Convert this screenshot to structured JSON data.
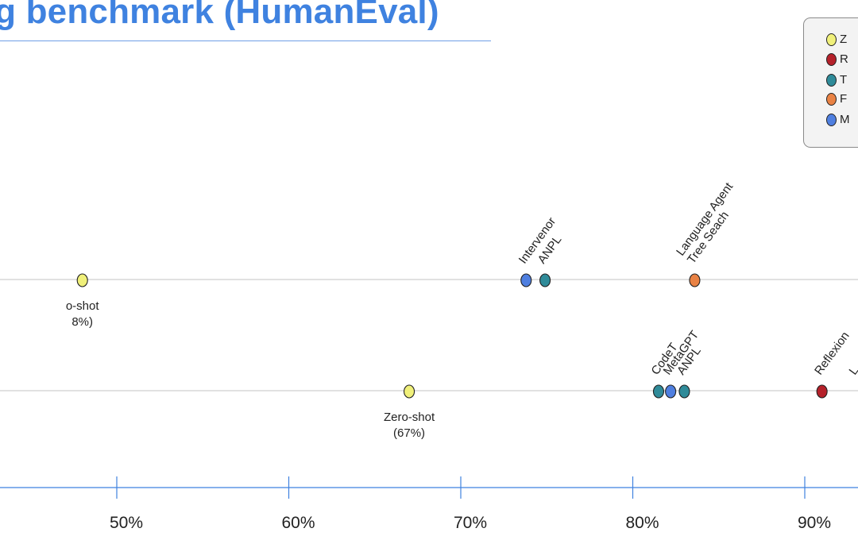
{
  "header": {
    "title": "ng benchmark (HumanEval)"
  },
  "legend": {
    "items": [
      {
        "label": "Z",
        "color": "#f0f07a",
        "icon": "circle"
      },
      {
        "label": "R",
        "color": "#b5212a",
        "icon": "circle"
      },
      {
        "label": "T",
        "color": "#2f8b99",
        "icon": "circle"
      },
      {
        "label": "F",
        "color": "#e98244",
        "icon": "circle"
      },
      {
        "label": "M",
        "color": "#4f7fe0",
        "icon": "circle"
      }
    ]
  },
  "chart_data": {
    "type": "scatter",
    "title": "",
    "xlabel": "",
    "ylabel": "",
    "xlim": [
      30,
      93
    ],
    "x_ticks": [
      50,
      60,
      70,
      80,
      90
    ],
    "x_tick_labels": [
      "50%",
      "60%",
      "70%",
      "80%",
      "90%"
    ],
    "grid": false,
    "legend_position": "top-right",
    "rows": [
      {
        "points": [
          {
            "x": 48,
            "category": "Z",
            "label": "o-shot\n8%)",
            "label_position": "below"
          },
          {
            "x": 73.8,
            "category": "M",
            "label": "Intervenor",
            "label_position": "above-rotated"
          },
          {
            "x": 74.9,
            "category": "T",
            "label": "ANPL",
            "label_position": "above-rotated"
          },
          {
            "x": 83.6,
            "category": "F",
            "label": "Language Agent\nTree Seach",
            "label_position": "above-rotated"
          }
        ]
      },
      {
        "points": [
          {
            "x": 67,
            "category": "Z",
            "label": "Zero-shot\n(67%)",
            "label_position": "below"
          },
          {
            "x": 81.5,
            "category": "T",
            "label": "CodeT",
            "label_position": "above-rotated"
          },
          {
            "x": 82.2,
            "category": "M",
            "label": "MetaGPT",
            "label_position": "above-rotated"
          },
          {
            "x": 83.0,
            "category": "T",
            "label": "ANPL",
            "label_position": "above-rotated"
          },
          {
            "x": 91.0,
            "category": "R",
            "label": "Reflexion",
            "label_position": "above-rotated"
          },
          {
            "x": 93.0,
            "category": "",
            "label": "L",
            "label_position": "above-rotated"
          }
        ]
      }
    ]
  }
}
